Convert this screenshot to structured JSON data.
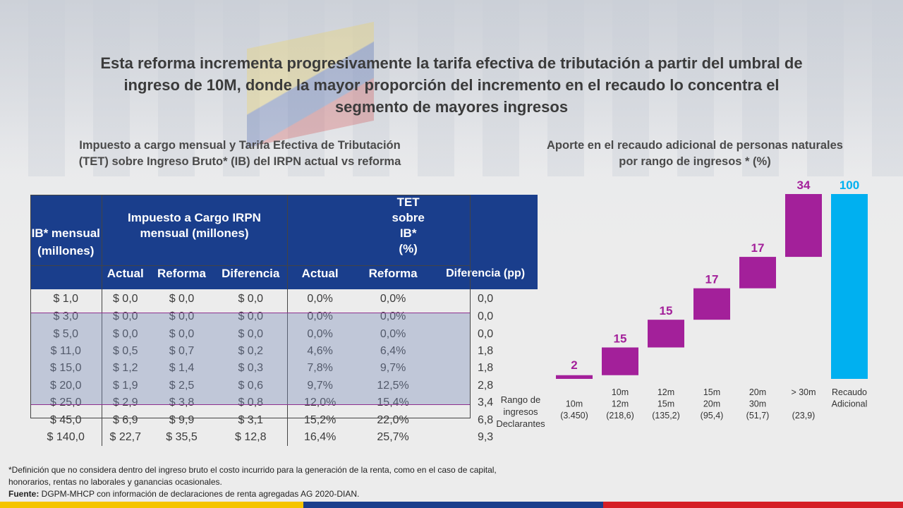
{
  "main_title": "Esta reforma incrementa progresivamente la tarifa efectiva de tributación a partir del umbral de ingreso de 10M, donde la mayor proporción del incremento en el recaudo lo concentra el segmento de mayores ingresos",
  "table": {
    "title": "Impuesto a cargo mensual y Tarifa Efectiva de Tributación (TET) sobre Ingreso Bruto* (IB) del IRPN actual vs reforma",
    "headers": {
      "ib": "IB* mensual (millones)",
      "impuesto_group": "Impuesto a Cargo IRPN mensual (millones)",
      "tet_group": "TET sobre IB* (%)",
      "actual": "Actual",
      "reforma": "Reforma",
      "diferencia": "Diferencia",
      "tet_actual": "Actual",
      "tet_reforma": "Reforma",
      "tet_diferencia": "Diferencia (pp)"
    },
    "rows": [
      [
        "$ 1,0",
        "$ 0,0",
        "$ 0,0",
        "$ 0,0",
        "0,0%",
        "0,0%",
        "0,0"
      ],
      [
        "$ 3,0",
        "$ 0,0",
        "$ 0,0",
        "$ 0,0",
        "0,0%",
        "0,0%",
        "0,0"
      ],
      [
        "$ 5,0",
        "$ 0,0",
        "$ 0,0",
        "$ 0,0",
        "0,0%",
        "0,0%",
        "0,0"
      ],
      [
        "$ 11,0",
        "$ 0,5",
        "$ 0,7",
        "$ 0,2",
        "4,6%",
        "6,4%",
        "1,8"
      ],
      [
        "$ 15,0",
        "$ 1,2",
        "$ 1,4",
        "$ 0,3",
        "7,8%",
        "9,7%",
        "1,8"
      ],
      [
        "$ 20,0",
        "$ 1,9",
        "$ 2,5",
        "$ 0,6",
        "9,7%",
        "12,5%",
        "2,8"
      ],
      [
        "$ 25,0",
        "$ 2,9",
        "$ 3,8",
        "$ 0,8",
        "12,0%",
        "15,4%",
        "3,4"
      ],
      [
        "$ 45,0",
        "$ 6,9",
        "$ 9,9",
        "$ 3,1",
        "15,2%",
        "22,0%",
        "6,8"
      ],
      [
        "$ 140,0",
        "$ 22,7",
        "$ 35,5",
        "$ 12,8",
        "16,4%",
        "25,7%",
        "9,3"
      ]
    ]
  },
  "chart_data": {
    "type": "bar",
    "subtype": "waterfall",
    "title": "Aporte en el recaudo adicional de personas naturales por rango de ingresos * (%)",
    "row_label": "Rango de ingresos Declarantes",
    "categories": [
      {
        "lines": [
          "",
          "10m",
          "(3.450)"
        ]
      },
      {
        "lines": [
          "10m",
          "12m",
          "(218,6)"
        ]
      },
      {
        "lines": [
          "12m",
          "15m",
          "(135,2)"
        ]
      },
      {
        "lines": [
          "15m",
          "20m",
          "(95,4)"
        ]
      },
      {
        "lines": [
          "20m",
          "30m",
          "(51,7)"
        ]
      },
      {
        "lines": [
          "> 30m",
          "",
          "(23,9)"
        ]
      },
      {
        "lines": [
          "Recaudo",
          "Adicional",
          ""
        ]
      }
    ],
    "values": [
      2,
      15,
      15,
      17,
      17,
      34,
      100
    ],
    "labels": [
      "2",
      "15",
      "15",
      "17",
      "17",
      "34",
      "100"
    ],
    "total_index": 6,
    "ylim": [
      0,
      100
    ],
    "colors": {
      "segment": "#a3209a",
      "total": "#00b0f0",
      "label_segment": "#a3209a",
      "label_total": "#00b0f0"
    }
  },
  "footnote": {
    "definition": "*Definición que no considera dentro del ingreso bruto el costo incurrido para la generación de la renta, como en el caso de capital, honorarios, rentas no laborales y ganancias ocasionales.",
    "source_label": "Fuente:",
    "source_text": " DGPM-MHCP  con información de declaraciones de renta agregadas AG 2020-DIAN."
  },
  "colors": {
    "header_blue": "#1a3e8c",
    "highlight_border": "#8e2f8e",
    "bar_yellow": "#f5c400",
    "bar_blue": "#1a3e8c",
    "bar_red": "#d51f26"
  }
}
